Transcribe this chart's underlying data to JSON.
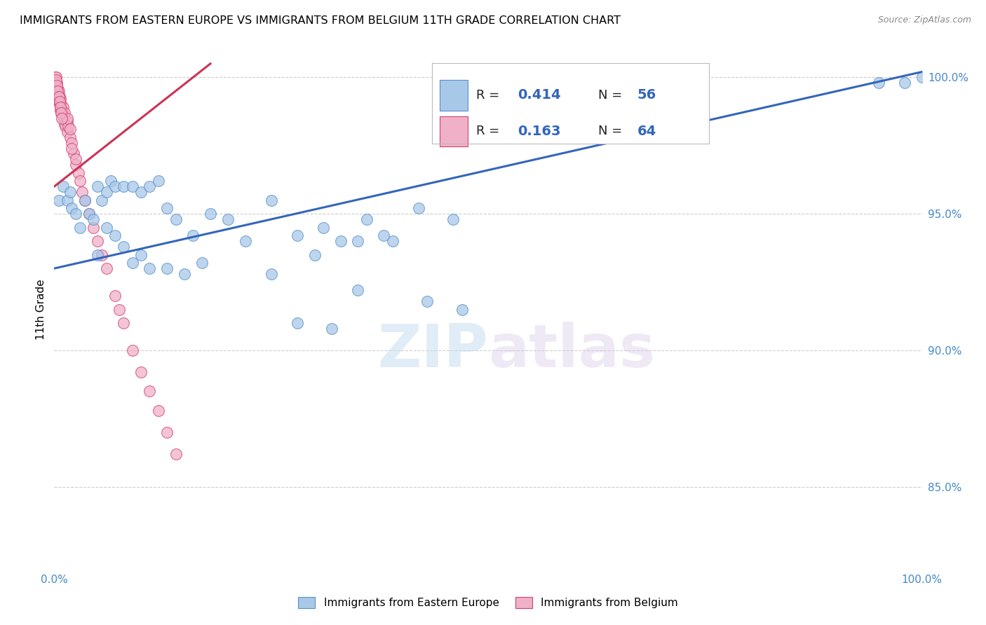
{
  "title": "IMMIGRANTS FROM EASTERN EUROPE VS IMMIGRANTS FROM BELGIUM 11TH GRADE CORRELATION CHART",
  "source": "Source: ZipAtlas.com",
  "ylabel": "11th Grade",
  "watermark_zip": "ZIP",
  "watermark_atlas": "atlas",
  "right_ytick_labels": [
    "100.0%",
    "95.0%",
    "90.0%",
    "85.0%"
  ],
  "right_ytick_values": [
    1.0,
    0.95,
    0.9,
    0.85
  ],
  "legend_blue_label": "Immigrants from Eastern Europe",
  "legend_pink_label": "Immigrants from Belgium",
  "legend_blue_R": "0.414",
  "legend_blue_N": "56",
  "legend_pink_R": "0.163",
  "legend_pink_N": "64",
  "xlim": [
    0.0,
    1.0
  ],
  "ylim": [
    0.82,
    1.01
  ],
  "blue_color": "#a8c8e8",
  "blue_edge": "#5590cc",
  "pink_color": "#f0b0c8",
  "pink_edge": "#d04070",
  "blue_line_color": "#3366bb",
  "pink_line_color": "#cc3355",
  "grid_color": "#cccccc",
  "title_fontsize": 11.5,
  "source_fontsize": 9,
  "tick_fontsize": 11,
  "ylabel_fontsize": 11,
  "scatter_size": 130,
  "blue_line_x0": 0.0,
  "blue_line_y0": 0.93,
  "blue_line_x1": 1.0,
  "blue_line_y1": 1.002,
  "pink_line_x0": 0.0,
  "pink_line_y0": 0.96,
  "pink_line_x1": 0.18,
  "pink_line_y1": 1.005,
  "blue_x": [
    0.005,
    0.01,
    0.015,
    0.018,
    0.02,
    0.025,
    0.03,
    0.035,
    0.04,
    0.045,
    0.05,
    0.055,
    0.06,
    0.065,
    0.07,
    0.08,
    0.09,
    0.1,
    0.11,
    0.12,
    0.13,
    0.14,
    0.16,
    0.18,
    0.2,
    0.22,
    0.25,
    0.28,
    0.31,
    0.33,
    0.36,
    0.39,
    0.42,
    0.46,
    0.3,
    0.35,
    0.38,
    0.05,
    0.06,
    0.07,
    0.08,
    0.09,
    0.1,
    0.11,
    0.13,
    0.15,
    0.17,
    0.25,
    0.35,
    0.43,
    0.47,
    0.28,
    0.32,
    0.95,
    0.98,
    1.0
  ],
  "blue_y": [
    0.955,
    0.96,
    0.955,
    0.958,
    0.952,
    0.95,
    0.945,
    0.955,
    0.95,
    0.948,
    0.96,
    0.955,
    0.958,
    0.962,
    0.96,
    0.96,
    0.96,
    0.958,
    0.96,
    0.962,
    0.952,
    0.948,
    0.942,
    0.95,
    0.948,
    0.94,
    0.955,
    0.942,
    0.945,
    0.94,
    0.948,
    0.94,
    0.952,
    0.948,
    0.935,
    0.94,
    0.942,
    0.935,
    0.945,
    0.942,
    0.938,
    0.932,
    0.935,
    0.93,
    0.93,
    0.928,
    0.932,
    0.928,
    0.922,
    0.918,
    0.915,
    0.91,
    0.908,
    0.998,
    0.998,
    1.0
  ],
  "pink_x": [
    0.001,
    0.001,
    0.001,
    0.002,
    0.002,
    0.002,
    0.003,
    0.003,
    0.003,
    0.004,
    0.004,
    0.005,
    0.005,
    0.005,
    0.006,
    0.006,
    0.007,
    0.007,
    0.008,
    0.008,
    0.009,
    0.01,
    0.01,
    0.011,
    0.012,
    0.012,
    0.013,
    0.015,
    0.015,
    0.016,
    0.018,
    0.02,
    0.022,
    0.025,
    0.028,
    0.03,
    0.032,
    0.035,
    0.04,
    0.045,
    0.05,
    0.055,
    0.06,
    0.07,
    0.075,
    0.08,
    0.09,
    0.1,
    0.11,
    0.12,
    0.13,
    0.14,
    0.015,
    0.018,
    0.002,
    0.003,
    0.004,
    0.005,
    0.006,
    0.007,
    0.008,
    0.009,
    0.02,
    0.025
  ],
  "pink_y": [
    1.0,
    0.998,
    0.996,
    1.0,
    0.998,
    0.996,
    0.998,
    0.996,
    0.994,
    0.996,
    0.994,
    0.995,
    0.993,
    0.991,
    0.993,
    0.99,
    0.992,
    0.988,
    0.99,
    0.987,
    0.988,
    0.989,
    0.986,
    0.985,
    0.987,
    0.983,
    0.982,
    0.984,
    0.98,
    0.982,
    0.978,
    0.976,
    0.972,
    0.968,
    0.965,
    0.962,
    0.958,
    0.955,
    0.95,
    0.945,
    0.94,
    0.935,
    0.93,
    0.92,
    0.915,
    0.91,
    0.9,
    0.892,
    0.885,
    0.878,
    0.87,
    0.862,
    0.985,
    0.981,
    0.999,
    0.997,
    0.995,
    0.993,
    0.991,
    0.989,
    0.987,
    0.985,
    0.974,
    0.97
  ]
}
